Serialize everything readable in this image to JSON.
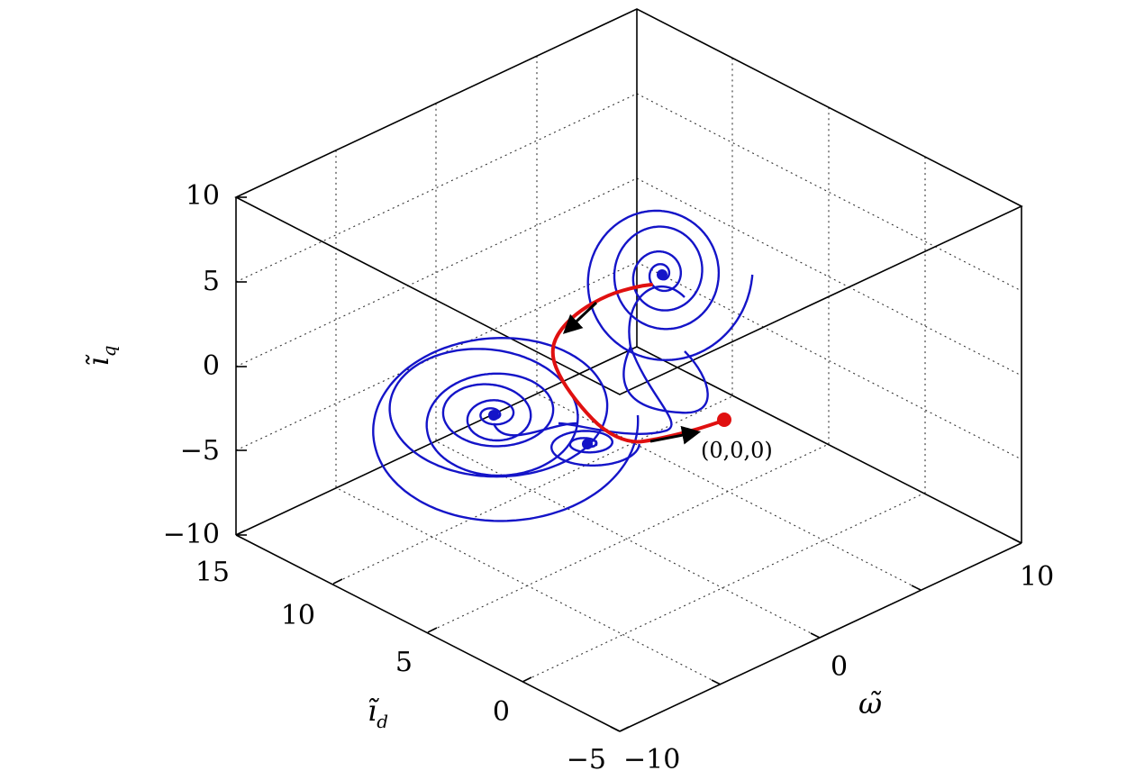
{
  "chart_data": {
    "type": "line",
    "dimension": "3d",
    "title": "",
    "axes": {
      "x": {
        "label": "ĩ",
        "label_subscript": "d",
        "ticks": [
          "−5",
          "0",
          "5",
          "10",
          "15"
        ],
        "range": [
          -5,
          15
        ]
      },
      "y": {
        "label": "ω̃",
        "ticks": [
          "−10",
          "0",
          "10"
        ],
        "range": [
          -10,
          10
        ]
      },
      "z": {
        "label": "ĩ",
        "label_subscript": "q",
        "ticks": [
          "−10",
          "−5",
          "0",
          "5",
          "10"
        ],
        "range": [
          -10,
          10
        ]
      }
    },
    "grid": true,
    "series": [
      {
        "role": "attractor-trajectory",
        "color": "#1414c8",
        "spirals": [
          {
            "cx": 548,
            "cy": 461,
            "rx": 160,
            "ry": 128,
            "turns": 7,
            "squash": 0.85
          },
          {
            "cx": 652,
            "cy": 493,
            "rx": 55,
            "ry": 35,
            "turns": 3,
            "squash": 0.7
          },
          {
            "cx": 735,
            "cy": 305,
            "rx": 95,
            "ry": 110,
            "turns": 5,
            "squash": 0.9
          }
        ]
      },
      {
        "role": "transient-path",
        "color": "#e01010",
        "points": [
          [
            806,
            466
          ],
          [
            770,
            478
          ],
          [
            728,
            488
          ],
          [
            700,
            492
          ],
          [
            670,
            478
          ],
          [
            645,
            452
          ],
          [
            623,
            422
          ],
          [
            612,
            395
          ],
          [
            617,
            372
          ],
          [
            640,
            347
          ],
          [
            675,
            327
          ],
          [
            708,
            318
          ],
          [
            723,
            316
          ]
        ]
      }
    ],
    "annotations": [
      {
        "text": "(0,0,0)",
        "marker_color": "#e01010"
      }
    ]
  }
}
